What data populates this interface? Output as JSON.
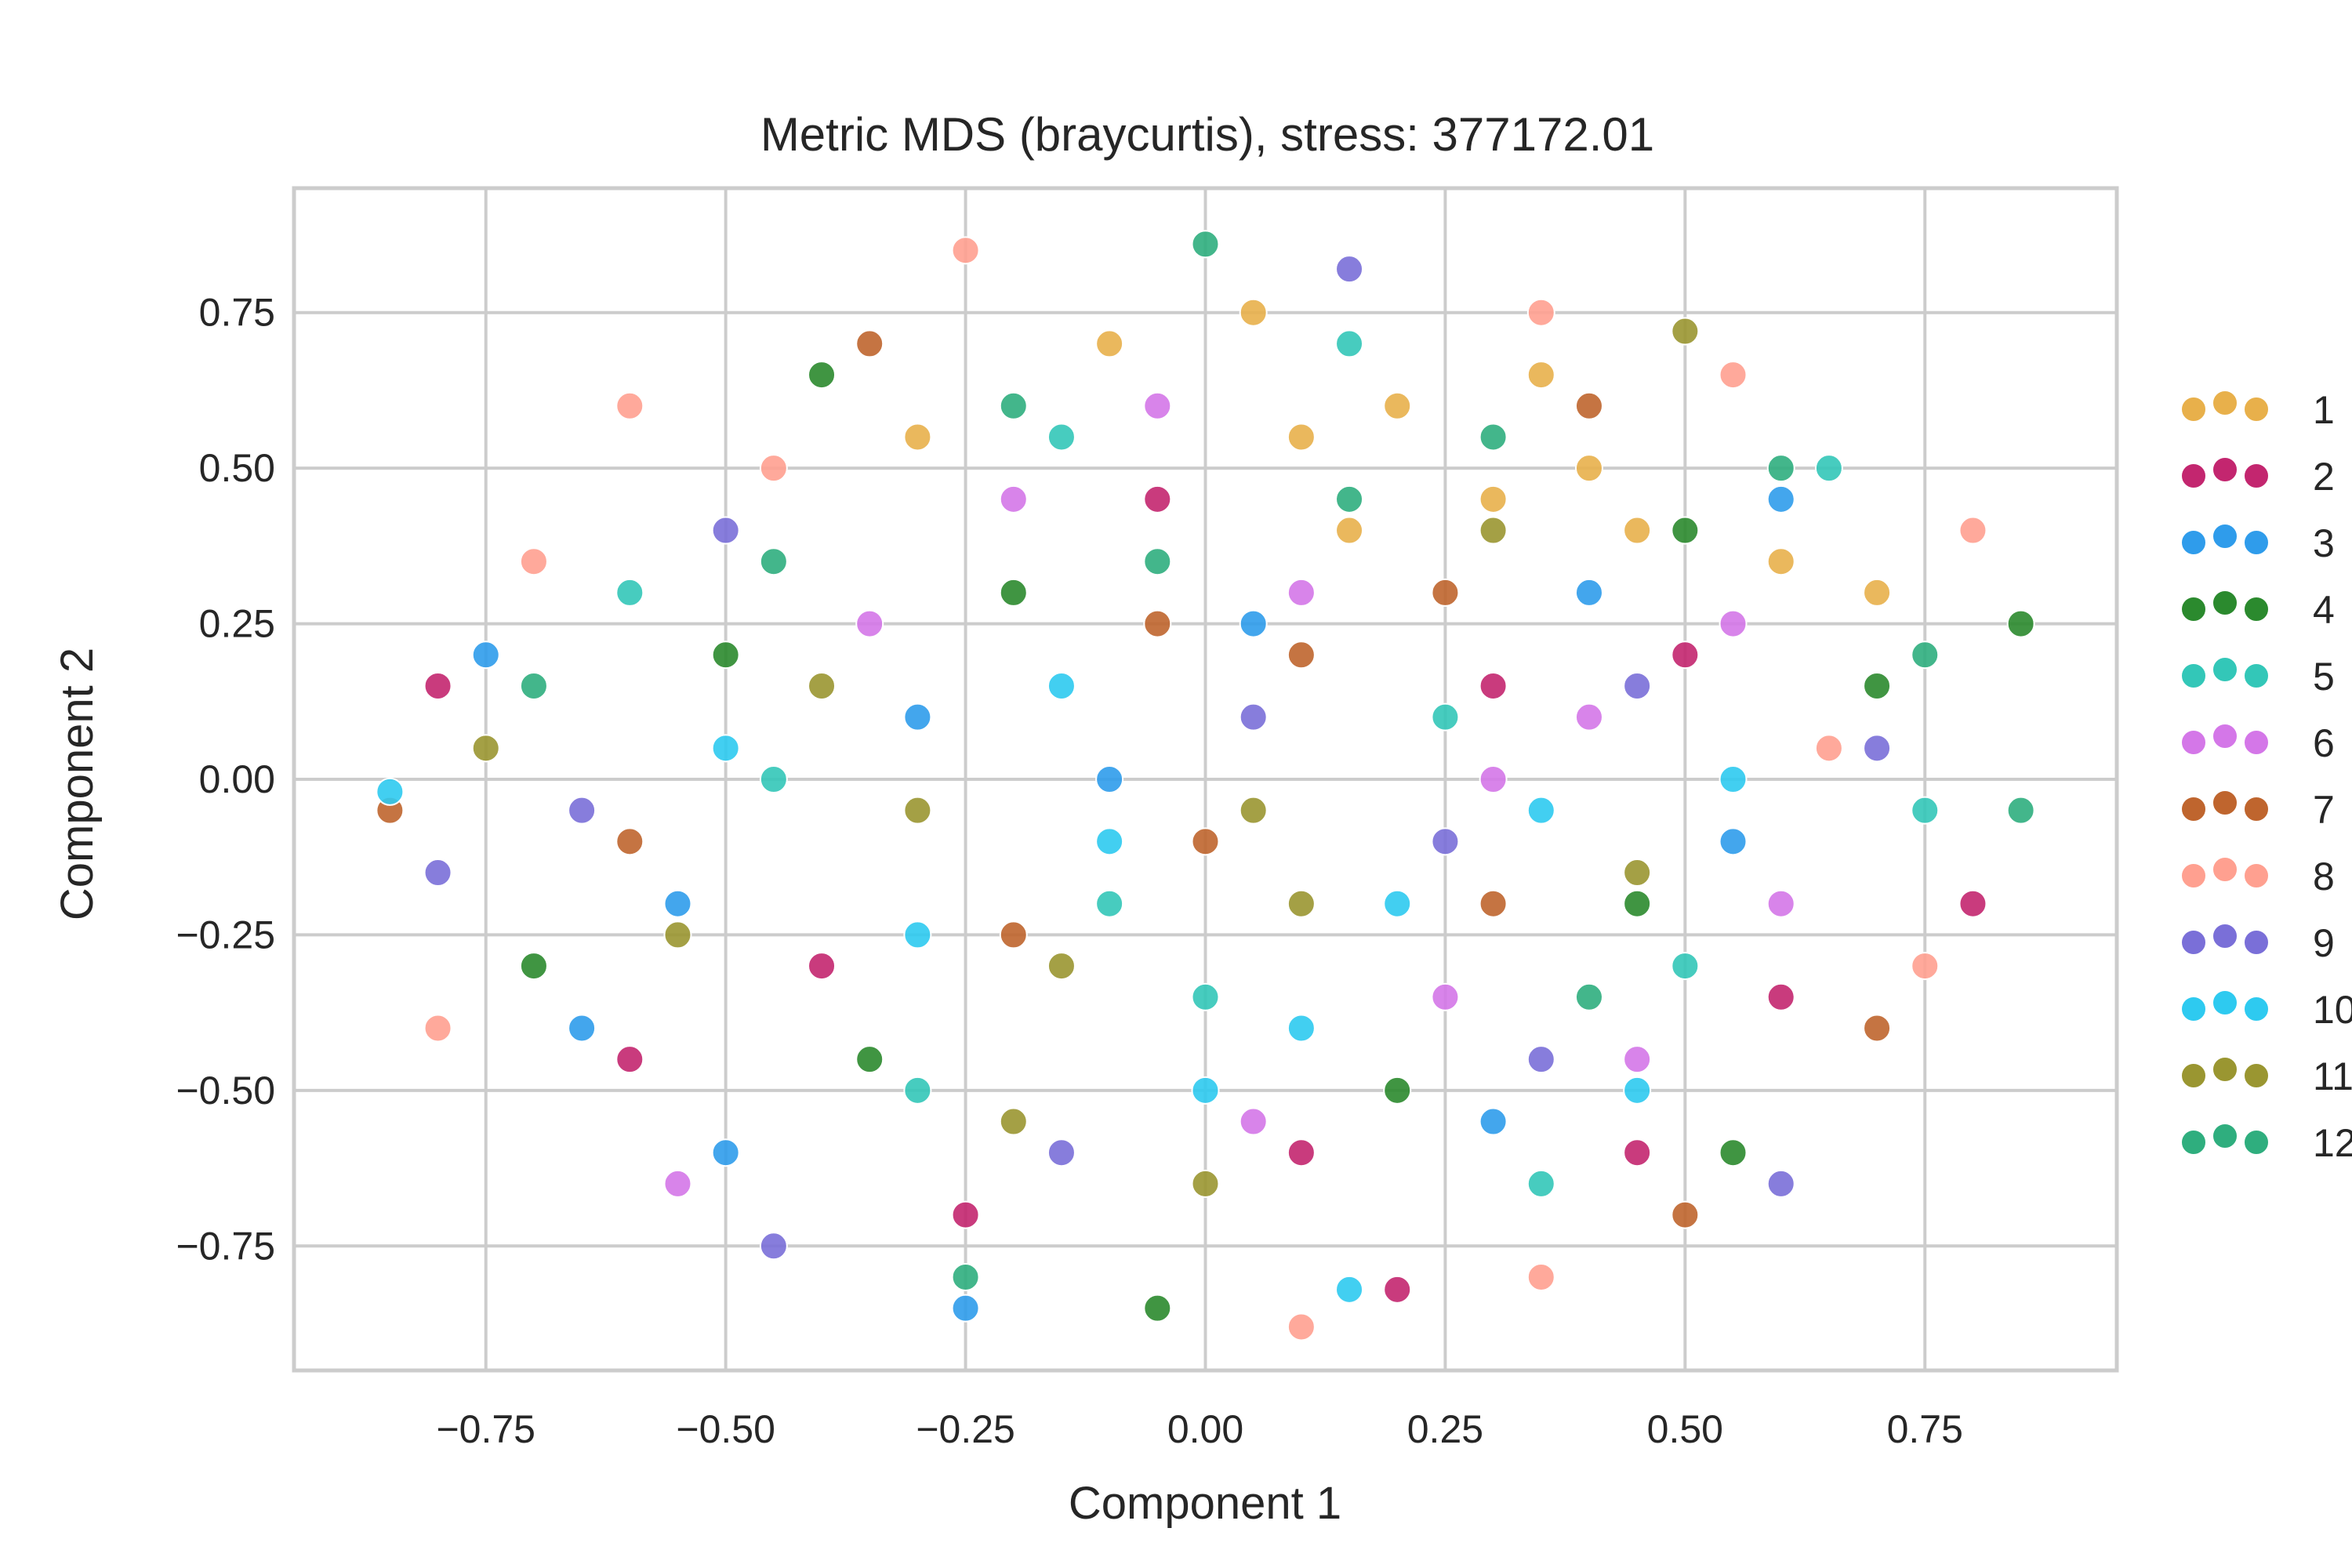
{
  "chart_data": {
    "type": "scatter",
    "title": "Metric MDS (braycurtis), stress: 377172.01",
    "xlabel": "Component 1",
    "ylabel": "Component 2",
    "xlim": [
      -0.95,
      0.95
    ],
    "ylim": [
      -0.95,
      0.95
    ],
    "x_ticks": [
      -0.75,
      -0.5,
      -0.25,
      0.0,
      0.25,
      0.5,
      0.75
    ],
    "x_tick_labels": [
      "−0.75",
      "−0.50",
      "−0.25",
      "0.00",
      "0.25",
      "0.50",
      "0.75"
    ],
    "y_ticks": [
      0.75,
      0.5,
      0.25,
      0.0,
      -0.25,
      -0.5,
      -0.75
    ],
    "y_tick_labels": [
      "0.75",
      "0.50",
      "0.25",
      "0.00",
      "−0.25",
      "−0.50",
      "−0.75"
    ],
    "grid": true,
    "legend_position": "right, outside plot",
    "series": [
      {
        "name": "1",
        "color": "#E8B04B",
        "points": [
          [
            0.1,
            0.55
          ],
          [
            0.2,
            0.6
          ],
          [
            0.3,
            0.45
          ],
          [
            0.4,
            0.5
          ],
          [
            -0.1,
            0.7
          ],
          [
            0.35,
            0.65
          ],
          [
            0.6,
            0.35
          ],
          [
            0.7,
            0.3
          ],
          [
            -0.3,
            0.55
          ],
          [
            0.15,
            0.4
          ],
          [
            0.05,
            0.75
          ],
          [
            0.45,
            0.4
          ]
        ]
      },
      {
        "name": "2",
        "color": "#C3266F",
        "points": [
          [
            -0.4,
            -0.3
          ],
          [
            0.1,
            -0.6
          ],
          [
            0.5,
            0.2
          ],
          [
            -0.6,
            -0.45
          ],
          [
            0.2,
            -0.82
          ],
          [
            0.45,
            -0.6
          ],
          [
            -0.8,
            0.15
          ],
          [
            0.8,
            -0.2
          ],
          [
            -0.25,
            -0.7
          ],
          [
            0.6,
            -0.35
          ],
          [
            -0.05,
            0.45
          ],
          [
            0.3,
            0.15
          ]
        ]
      },
      {
        "name": "3",
        "color": "#2F9CEB",
        "points": [
          [
            -0.55,
            -0.2
          ],
          [
            -0.3,
            0.1
          ],
          [
            0.6,
            0.45
          ],
          [
            -0.25,
            -0.85
          ],
          [
            -0.5,
            -0.6
          ],
          [
            0.05,
            0.25
          ],
          [
            -0.75,
            0.2
          ],
          [
            0.55,
            -0.1
          ],
          [
            0.3,
            -0.55
          ],
          [
            -0.1,
            0.0
          ],
          [
            0.4,
            0.3
          ],
          [
            -0.65,
            -0.4
          ]
        ]
      },
      {
        "name": "4",
        "color": "#2B8A2E",
        "points": [
          [
            -0.5,
            0.2
          ],
          [
            -0.4,
            0.65
          ],
          [
            0.45,
            -0.2
          ],
          [
            -0.05,
            -0.85
          ],
          [
            0.5,
            0.4
          ],
          [
            -0.7,
            -0.3
          ],
          [
            0.7,
            0.15
          ],
          [
            0.2,
            -0.5
          ],
          [
            -0.2,
            0.3
          ],
          [
            0.85,
            0.25
          ],
          [
            0.55,
            -0.6
          ],
          [
            -0.35,
            -0.45
          ]
        ]
      },
      {
        "name": "5",
        "color": "#33C7B8",
        "points": [
          [
            -0.1,
            -0.2
          ],
          [
            0.25,
            0.1
          ],
          [
            -0.6,
            0.3
          ],
          [
            0.5,
            -0.3
          ],
          [
            0.65,
            0.5
          ],
          [
            -0.3,
            -0.5
          ],
          [
            0.15,
            0.7
          ],
          [
            -0.45,
            0.0
          ],
          [
            0.35,
            -0.65
          ],
          [
            -0.15,
            0.55
          ],
          [
            0.75,
            -0.05
          ],
          [
            0.0,
            -0.35
          ]
        ]
      },
      {
        "name": "6",
        "color": "#D477E8",
        "points": [
          [
            0.3,
            0.0
          ],
          [
            0.45,
            -0.45
          ],
          [
            -0.2,
            0.45
          ],
          [
            0.1,
            0.3
          ],
          [
            -0.55,
            -0.65
          ],
          [
            0.25,
            -0.35
          ],
          [
            0.55,
            0.25
          ],
          [
            -0.35,
            0.25
          ],
          [
            0.05,
            -0.55
          ],
          [
            0.6,
            -0.2
          ],
          [
            -0.05,
            0.6
          ],
          [
            0.4,
            0.1
          ]
        ]
      },
      {
        "name": "7",
        "color": "#BF652E",
        "points": [
          [
            0.0,
            -0.1
          ],
          [
            -0.05,
            0.25
          ],
          [
            0.4,
            0.6
          ],
          [
            -0.85,
            -0.05
          ],
          [
            0.7,
            -0.4
          ],
          [
            0.1,
            0.2
          ],
          [
            -0.2,
            -0.25
          ],
          [
            0.5,
            -0.7
          ],
          [
            0.25,
            0.3
          ],
          [
            -0.6,
            -0.1
          ],
          [
            0.3,
            -0.2
          ],
          [
            -0.35,
            0.7
          ]
        ]
      },
      {
        "name": "8",
        "color": "#FFA090",
        "points": [
          [
            -0.25,
            0.85
          ],
          [
            -0.6,
            0.6
          ],
          [
            0.35,
            0.75
          ],
          [
            0.8,
            0.4
          ],
          [
            -0.8,
            -0.4
          ],
          [
            0.1,
            -0.88
          ],
          [
            -0.45,
            0.5
          ],
          [
            0.65,
            0.05
          ],
          [
            0.35,
            -0.8
          ],
          [
            -0.7,
            0.35
          ],
          [
            0.75,
            -0.3
          ],
          [
            0.55,
            0.65
          ]
        ]
      },
      {
        "name": "9",
        "color": "#7A6FD8",
        "points": [
          [
            0.25,
            -0.1
          ],
          [
            0.15,
            0.82
          ],
          [
            -0.65,
            -0.05
          ],
          [
            0.6,
            -0.65
          ],
          [
            -0.45,
            -0.75
          ],
          [
            0.7,
            0.05
          ],
          [
            -0.8,
            -0.15
          ],
          [
            0.45,
            0.15
          ],
          [
            -0.15,
            -0.6
          ],
          [
            0.05,
            0.1
          ],
          [
            0.35,
            -0.45
          ],
          [
            -0.5,
            0.4
          ]
        ]
      },
      {
        "name": "10",
        "color": "#2ECAF0",
        "points": [
          [
            -0.1,
            -0.1
          ],
          [
            0.2,
            -0.2
          ],
          [
            -0.85,
            -0.02
          ],
          [
            0.45,
            -0.5
          ],
          [
            0.0,
            -0.5
          ],
          [
            -0.5,
            0.05
          ],
          [
            0.35,
            -0.05
          ],
          [
            -0.3,
            -0.25
          ],
          [
            0.1,
            -0.4
          ],
          [
            0.55,
            0.0
          ],
          [
            0.15,
            -0.82
          ],
          [
            -0.15,
            0.15
          ]
        ]
      },
      {
        "name": "11",
        "color": "#9A9631",
        "points": [
          [
            0.05,
            -0.05
          ],
          [
            -0.15,
            -0.3
          ],
          [
            0.5,
            0.72
          ],
          [
            -0.4,
            0.15
          ],
          [
            -0.3,
            -0.05
          ],
          [
            0.1,
            -0.2
          ],
          [
            -0.55,
            -0.25
          ],
          [
            0.3,
            0.4
          ],
          [
            0.0,
            -0.65
          ],
          [
            0.45,
            -0.15
          ],
          [
            -0.2,
            -0.55
          ],
          [
            -0.75,
            0.05
          ]
        ]
      },
      {
        "name": "12",
        "color": "#2FAE7E",
        "points": [
          [
            -0.2,
            0.6
          ],
          [
            0.3,
            0.55
          ],
          [
            0.0,
            0.86
          ],
          [
            0.6,
            0.5
          ],
          [
            -0.7,
            0.15
          ],
          [
            0.85,
            -0.05
          ],
          [
            0.15,
            0.45
          ],
          [
            -0.45,
            0.35
          ],
          [
            0.75,
            0.2
          ],
          [
            -0.25,
            -0.8
          ],
          [
            0.4,
            -0.35
          ],
          [
            -0.05,
            0.35
          ]
        ]
      }
    ]
  }
}
